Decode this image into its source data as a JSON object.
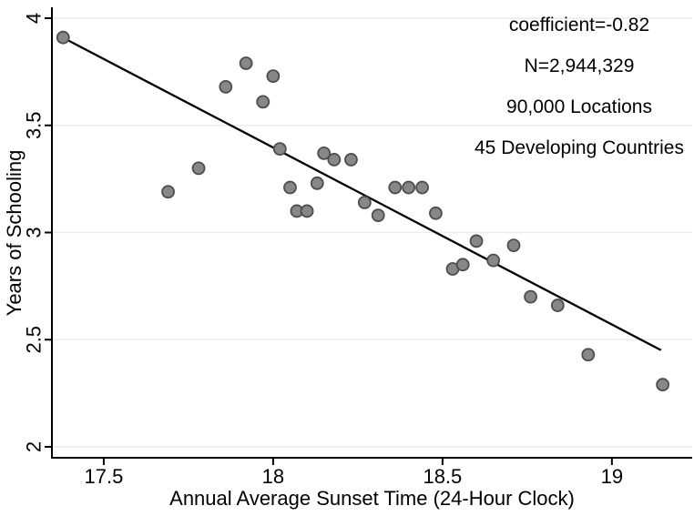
{
  "chart_data": {
    "type": "scatter",
    "xlabel": "Annual Average Sunset Time (24-Hour Clock)",
    "ylabel": "Years of Schooling",
    "xlim": [
      17.347,
      19.237
    ],
    "ylim": [
      1.949,
      4.051
    ],
    "x_ticks": [
      17.5,
      18,
      18.5,
      19
    ],
    "x_tick_labels": [
      "17.5",
      "18",
      "18.5",
      "19"
    ],
    "y_ticks": [
      2,
      2.5,
      3,
      3.5,
      4
    ],
    "y_tick_labels": [
      "2",
      "2.5",
      "3",
      "3.5",
      "4"
    ],
    "grid": true,
    "legend_position": "none",
    "points": [
      [
        17.38,
        3.91
      ],
      [
        17.69,
        3.19
      ],
      [
        17.78,
        3.3
      ],
      [
        17.86,
        3.68
      ],
      [
        17.92,
        3.79
      ],
      [
        17.97,
        3.61
      ],
      [
        18.0,
        3.73
      ],
      [
        18.02,
        3.39
      ],
      [
        18.05,
        3.21
      ],
      [
        18.07,
        3.1
      ],
      [
        18.1,
        3.1
      ],
      [
        18.13,
        3.23
      ],
      [
        18.15,
        3.37
      ],
      [
        18.18,
        3.34
      ],
      [
        18.23,
        3.34
      ],
      [
        18.27,
        3.14
      ],
      [
        18.31,
        3.08
      ],
      [
        18.36,
        3.21
      ],
      [
        18.4,
        3.21
      ],
      [
        18.44,
        3.21
      ],
      [
        18.48,
        3.09
      ],
      [
        18.53,
        2.83
      ],
      [
        18.56,
        2.85
      ],
      [
        18.6,
        2.96
      ],
      [
        18.65,
        2.87
      ],
      [
        18.71,
        2.94
      ],
      [
        18.76,
        2.7
      ],
      [
        18.84,
        2.66
      ],
      [
        18.93,
        2.43
      ],
      [
        19.15,
        2.29
      ]
    ],
    "trend_line": {
      "x1": 17.382,
      "y1": 3.907,
      "x2": 19.145,
      "y2": 2.451
    },
    "annotations": [
      "coefficient=-0.82",
      "N=2,944,329",
      "90,000 Locations",
      "45 Developing Countries"
    ],
    "colors": {
      "marker_fill": "#878787",
      "marker_stroke": "#4d4d4d",
      "trend": "#000000",
      "grid": "#ececec",
      "axis": "#000000",
      "text": "#000000"
    }
  }
}
